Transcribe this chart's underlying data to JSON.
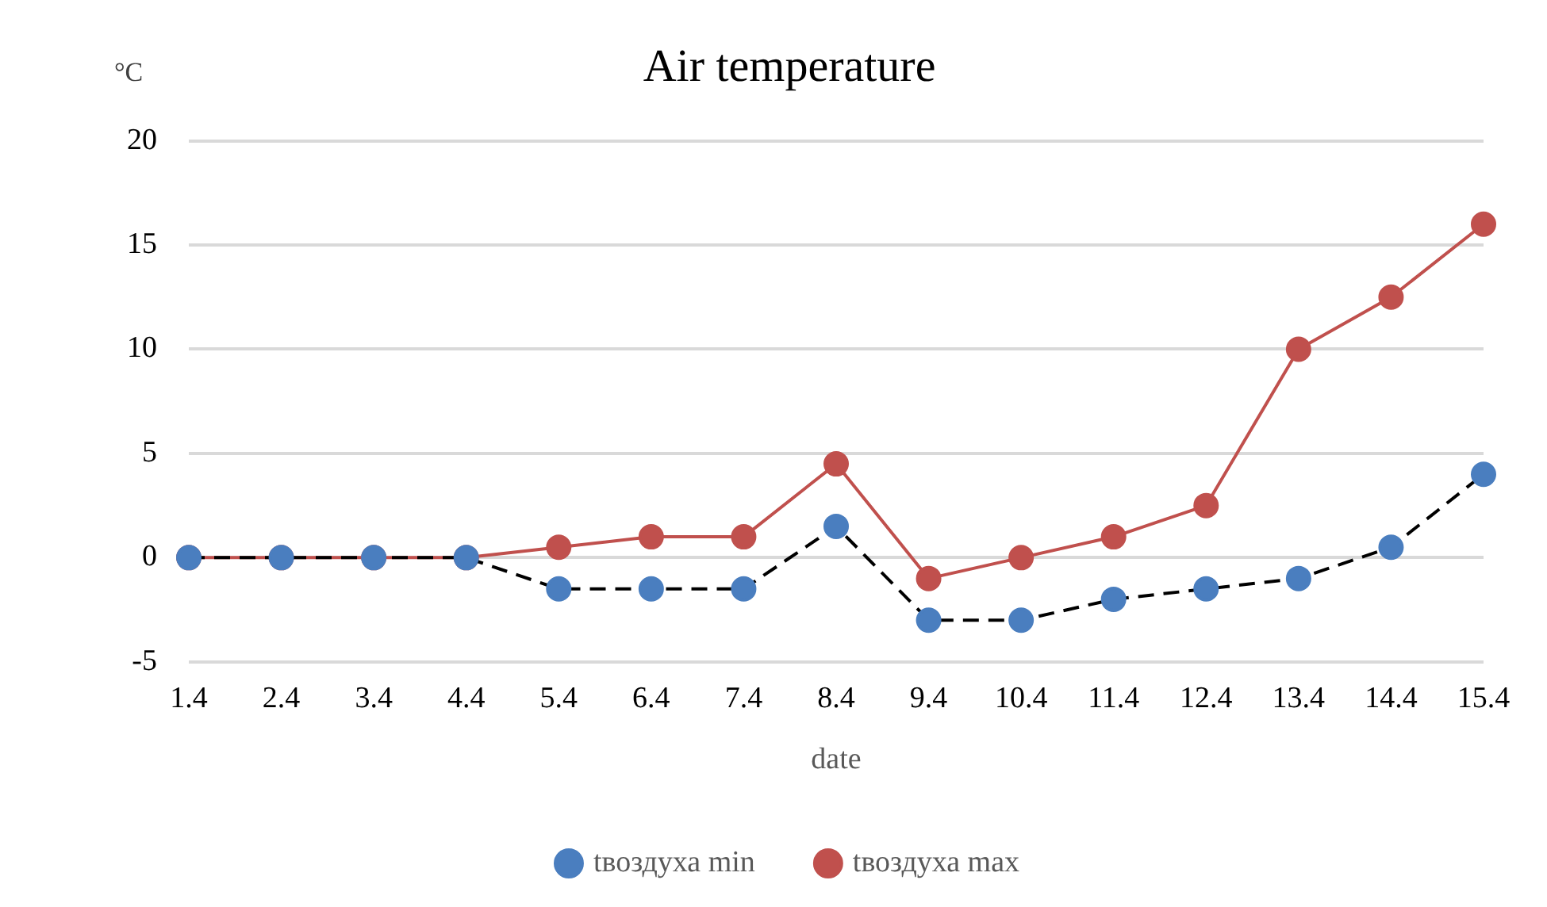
{
  "chart_data": {
    "type": "line",
    "title": "Air temperature",
    "xlabel": "date",
    "ylabel": "°C",
    "categories": [
      "1.4",
      "2.4",
      "3.4",
      "4.4",
      "5.4",
      "6.4",
      "7.4",
      "8.4",
      "9.4",
      "10.4",
      "11.4",
      "12.4",
      "13.4",
      "14.4",
      "15.4"
    ],
    "series": [
      {
        "name": "tвоздуха min",
        "color": "#4a7ebf",
        "line_style": "dashed",
        "values": [
          0,
          0,
          0,
          0,
          -1.5,
          -1.5,
          -1.5,
          1.5,
          -3,
          -3,
          -2,
          -1.5,
          -1,
          0.5,
          4
        ]
      },
      {
        "name": "tвоздуха max",
        "color": "#c0504d",
        "line_style": "solid",
        "values": [
          0,
          0,
          0,
          0,
          0.5,
          1,
          1,
          4.5,
          -1,
          0,
          1,
          2.5,
          10,
          12.5,
          16
        ]
      }
    ],
    "ylim": [
      -5,
      20
    ],
    "yticks": [
      -5,
      0,
      5,
      10,
      15,
      20
    ],
    "grid": "y",
    "legend": "bottom",
    "marker": "circle"
  }
}
